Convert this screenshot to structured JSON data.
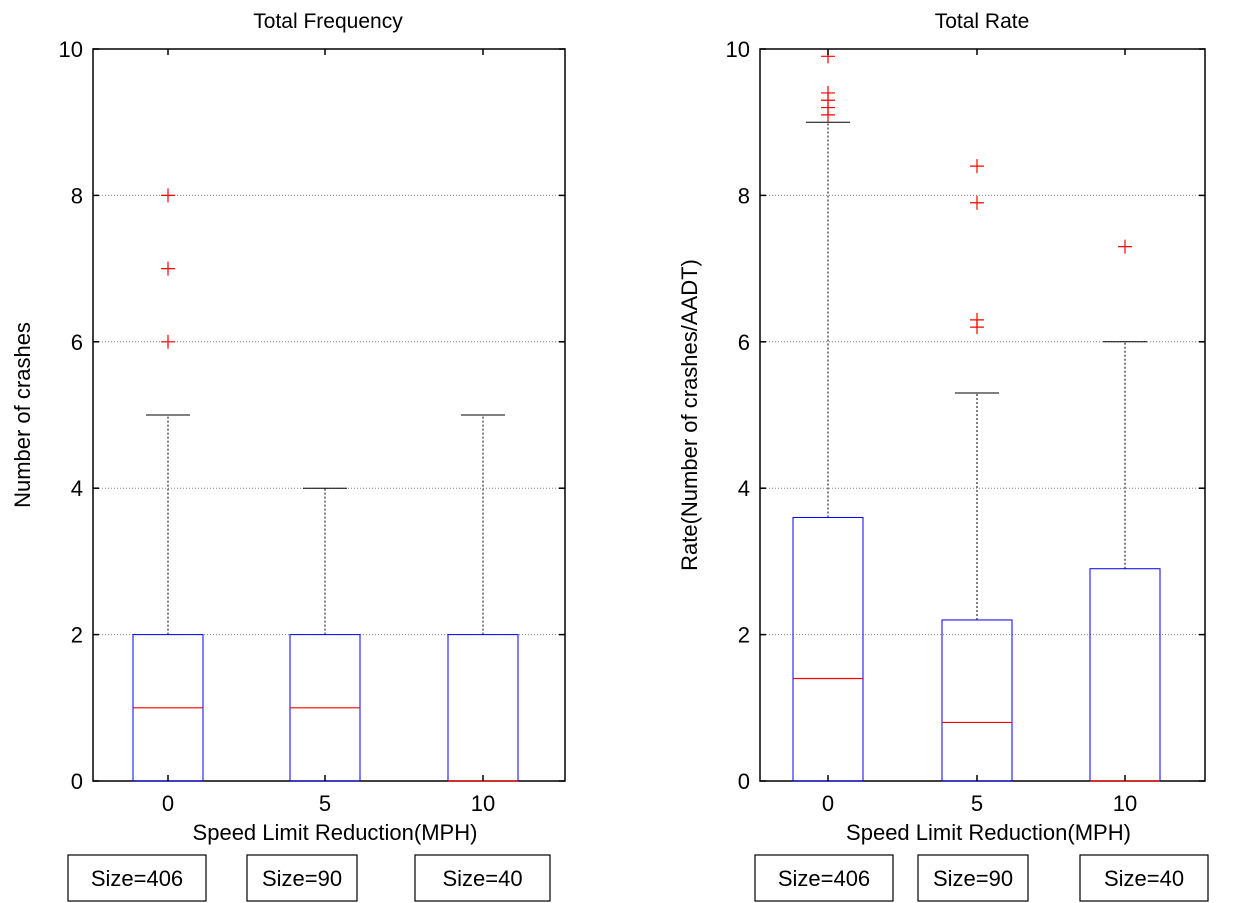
{
  "chart_data": [
    {
      "type": "box",
      "title": "Total Frequency",
      "xlabel": "Speed Limit Reduction(MPH)",
      "ylabel": "Number of crashes",
      "ylim": [
        0,
        10
      ],
      "yticks": [
        0,
        2,
        4,
        6,
        8,
        10
      ],
      "grid": true,
      "categories": [
        "0",
        "5",
        "10"
      ],
      "boxes": [
        {
          "category": "0",
          "whisker_low": 0,
          "q1": 0,
          "median": 1,
          "q3": 2,
          "whisker_high": 5,
          "outliers": [
            6,
            7,
            8
          ]
        },
        {
          "category": "5",
          "whisker_low": 0,
          "q1": 0,
          "median": 1,
          "q3": 2,
          "whisker_high": 4,
          "outliers": []
        },
        {
          "category": "10",
          "whisker_low": 0,
          "q1": 0,
          "median": 0,
          "q3": 2,
          "whisker_high": 5,
          "outliers": []
        }
      ],
      "size_labels": [
        "Size=406",
        "Size=90",
        "Size=40"
      ]
    },
    {
      "type": "box",
      "title": "Total Rate",
      "xlabel": "Speed Limit Reduction(MPH)",
      "ylabel": "Rate(Number of crashes/AADT)",
      "ylim": [
        0,
        10
      ],
      "yticks": [
        0,
        2,
        4,
        6,
        8,
        10
      ],
      "grid": true,
      "categories": [
        "0",
        "5",
        "10"
      ],
      "boxes": [
        {
          "category": "0",
          "whisker_low": 0,
          "q1": 0,
          "median": 1.4,
          "q3": 3.6,
          "whisker_high": 9.0,
          "outliers": [
            9.1,
            9.2,
            9.3,
            9.4,
            9.9
          ]
        },
        {
          "category": "5",
          "whisker_low": 0,
          "q1": 0,
          "median": 0.8,
          "q3": 2.2,
          "whisker_high": 5.3,
          "outliers": [
            6.2,
            6.3,
            7.9,
            8.4
          ]
        },
        {
          "category": "10",
          "whisker_low": 0,
          "q1": 0,
          "median": 0,
          "q3": 2.9,
          "whisker_high": 6.0,
          "outliers": [
            7.3
          ]
        }
      ],
      "size_labels": [
        "Size=406",
        "Size=90",
        "Size=40"
      ]
    }
  ],
  "colors": {
    "box": "#0000ff",
    "median": "#ff0000",
    "outlier": "#ff0000",
    "whisker": "#000000",
    "grid": "#808080"
  }
}
